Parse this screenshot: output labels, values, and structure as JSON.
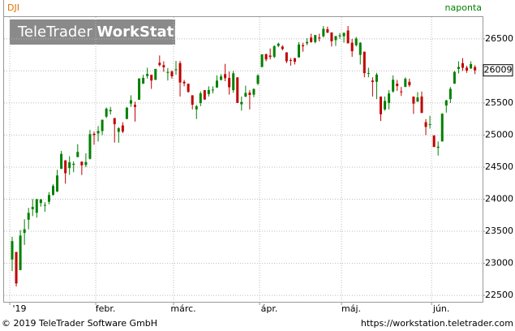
{
  "header": {
    "symbol": "DJI",
    "period": "naponta",
    "logo_light": "TeleTrader",
    "logo_bold": "WorkStation"
  },
  "footer": {
    "copyright": "© 2019 TeleTrader Software GmbH",
    "url": "https://workstation.teletrader.com"
  },
  "chart_data": {
    "type": "candlestick",
    "up_color": "#008000",
    "down_color": "#c00000",
    "ylim": [
      22400,
      26840
    ],
    "yticks": [
      22500,
      23000,
      23500,
      24000,
      24500,
      25000,
      25500,
      26000,
      26500
    ],
    "xticks": [
      {
        "value": 0,
        "label": "'19"
      },
      {
        "value": 21,
        "label": "febr."
      },
      {
        "value": 40,
        "label": "márc."
      },
      {
        "value": 61,
        "label": "ápr."
      },
      {
        "value": 81,
        "label": "máj."
      },
      {
        "value": 103,
        "label": "jún."
      }
    ],
    "grid": true,
    "last_value": 26009,
    "ohlc": [
      [
        23059,
        23413,
        22879,
        23346
      ],
      [
        23177,
        23177,
        22638,
        22686
      ],
      [
        22894,
        23518,
        22894,
        23433
      ],
      [
        23474,
        23687,
        23287,
        23531
      ],
      [
        23680,
        23864,
        23530,
        23787
      ],
      [
        23844,
        24003,
        23736,
        23879
      ],
      [
        23788,
        24002,
        23712,
        24001
      ],
      [
        23940,
        24005,
        23883,
        23996
      ],
      [
        23910,
        23954,
        23805,
        23910
      ],
      [
        23960,
        24111,
        23920,
        24066
      ],
      [
        24066,
        24232,
        24057,
        24207
      ],
      [
        24120,
        24457,
        24110,
        24370
      ],
      [
        24473,
        24752,
        24473,
        24706
      ],
      [
        24606,
        24606,
        24242,
        24405
      ],
      [
        24485,
        24670,
        24380,
        24576
      ],
      [
        24535,
        24590,
        24420,
        24553
      ],
      [
        24656,
        24857,
        24656,
        24737
      ],
      [
        24586,
        24586,
        24377,
        24528
      ],
      [
        24534,
        24715,
        24500,
        24579
      ],
      [
        24630,
        25078,
        24620,
        25015
      ],
      [
        25020,
        25053,
        24850,
        24999
      ],
      [
        25025,
        25140,
        24900,
        25064
      ],
      [
        25062,
        25240,
        25000,
        25239
      ],
      [
        25287,
        25430,
        25265,
        25411
      ],
      [
        25371,
        25439,
        25319,
        25390
      ],
      [
        25265,
        25265,
        24883,
        25169
      ],
      [
        25050,
        25125,
        24880,
        25106
      ],
      [
        25150,
        25200,
        25030,
        25053
      ],
      [
        25250,
        25439,
        25250,
        25425
      ],
      [
        25490,
        25620,
        25440,
        25543
      ],
      [
        25470,
        25520,
        25210,
        25439
      ],
      [
        25550,
        25883,
        25550,
        25883
      ],
      [
        25800,
        25940,
        25800,
        25891
      ],
      [
        25920,
        26050,
        25880,
        25954
      ],
      [
        25940,
        25940,
        25720,
        25850
      ],
      [
        25860,
        26031,
        25860,
        26031
      ],
      [
        26127,
        26241,
        26070,
        26091
      ],
      [
        26090,
        26150,
        25986,
        26057
      ],
      [
        25970,
        26045,
        25850,
        25985
      ],
      [
        25990,
        26010,
        25880,
        25916
      ],
      [
        26020,
        26156,
        25940,
        26026
      ],
      [
        26122,
        26155,
        25600,
        25819
      ],
      [
        25830,
        25860,
        25760,
        25806
      ],
      [
        25800,
        25800,
        25660,
        25673
      ],
      [
        25620,
        25620,
        25400,
        25473
      ],
      [
        25400,
        25470,
        25250,
        25450
      ],
      [
        25500,
        25680,
        25450,
        25650
      ],
      [
        25700,
        25700,
        25550,
        25554
      ],
      [
        25640,
        25760,
        25600,
        25702
      ],
      [
        25700,
        25760,
        25650,
        25709
      ],
      [
        25740,
        25930,
        25740,
        25849
      ],
      [
        25860,
        25950,
        25850,
        25914
      ],
      [
        25950,
        26110,
        25840,
        25887
      ],
      [
        25890,
        25990,
        25630,
        25745
      ],
      [
        25700,
        26000,
        25660,
        25962
      ],
      [
        25900,
        25900,
        25500,
        25502
      ],
      [
        25480,
        25600,
        25380,
        25516
      ],
      [
        25600,
        25770,
        25590,
        25657
      ],
      [
        25660,
        25700,
        25400,
        25626
      ],
      [
        25630,
        25730,
        25590,
        25717
      ],
      [
        25800,
        25950,
        25780,
        25929
      ],
      [
        26060,
        26260,
        26060,
        26258
      ],
      [
        26260,
        26270,
        26150,
        26179
      ],
      [
        26240,
        26350,
        26180,
        26218
      ],
      [
        26220,
        26400,
        26200,
        26385
      ],
      [
        26390,
        26440,
        26370,
        26425
      ],
      [
        26380,
        26400,
        26320,
        26341
      ],
      [
        26290,
        26290,
        26120,
        26150
      ],
      [
        26170,
        26200,
        26080,
        26157
      ],
      [
        26200,
        26200,
        26100,
        26143
      ],
      [
        26210,
        26450,
        26210,
        26412
      ],
      [
        26400,
        26440,
        26300,
        26384
      ],
      [
        26430,
        26510,
        26400,
        26452
      ],
      [
        26520,
        26580,
        26440,
        26450
      ],
      [
        26450,
        26560,
        26430,
        26559
      ],
      [
        26520,
        26580,
        26460,
        26511
      ],
      [
        26540,
        26700,
        26520,
        26656
      ],
      [
        26650,
        26690,
        26590,
        26597
      ],
      [
        26600,
        26600,
        26380,
        26462
      ],
      [
        26480,
        26545,
        26390,
        26543
      ],
      [
        26540,
        26590,
        26500,
        26554
      ],
      [
        26540,
        26600,
        26440,
        26593
      ],
      [
        26630,
        26700,
        26430,
        26430
      ],
      [
        26440,
        26500,
        26220,
        26307
      ],
      [
        26400,
        26530,
        26380,
        26505
      ],
      [
        26250,
        26450,
        26100,
        26438
      ],
      [
        26300,
        26300,
        25900,
        25965
      ],
      [
        25960,
        26050,
        25900,
        25968
      ],
      [
        25850,
        25900,
        25600,
        25828
      ],
      [
        25830,
        25970,
        25560,
        25942
      ],
      [
        25600,
        25600,
        25220,
        25324
      ],
      [
        25400,
        25600,
        25380,
        25532
      ],
      [
        25500,
        25700,
        25400,
        25648
      ],
      [
        25680,
        25930,
        25660,
        25862
      ],
      [
        25800,
        25860,
        25690,
        25764
      ],
      [
        25680,
        25750,
        25610,
        25679
      ],
      [
        25750,
        25900,
        25750,
        25877
      ],
      [
        25830,
        25880,
        25750,
        25776
      ],
      [
        25600,
        25600,
        25330,
        25490
      ],
      [
        25520,
        25670,
        25520,
        25586
      ],
      [
        25600,
        25680,
        25340,
        25347
      ],
      [
        25200,
        25250,
        25000,
        25126
      ],
      [
        25160,
        25300,
        25100,
        25169
      ],
      [
        24990,
        25000,
        24810,
        24815
      ],
      [
        24800,
        24900,
        24680,
        24819
      ],
      [
        24900,
        25340,
        24900,
        25332
      ],
      [
        25460,
        25550,
        25350,
        25540
      ],
      [
        25560,
        25750,
        25500,
        25720
      ],
      [
        25800,
        26000,
        25800,
        25984
      ],
      [
        26030,
        26150,
        25960,
        26062
      ],
      [
        26120,
        26200,
        26000,
        26049
      ],
      [
        26050,
        26080,
        25970,
        26004
      ],
      [
        26040,
        26150,
        26030,
        26106
      ],
      [
        26060,
        26090,
        25950,
        26009
      ]
    ]
  }
}
